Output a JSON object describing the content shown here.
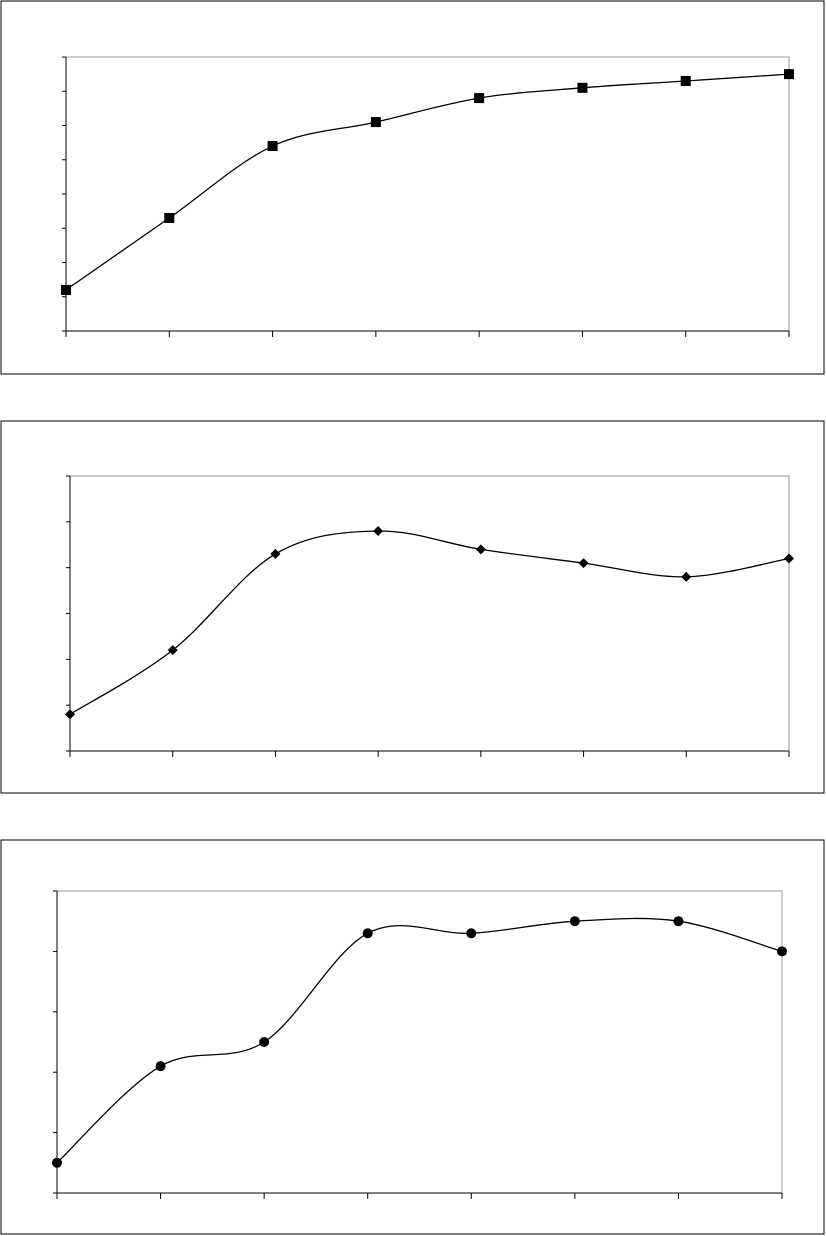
{
  "chart_data": [
    {
      "type": "line",
      "marker": "square",
      "smooth": true,
      "color": "#000000",
      "categories": [
        null,
        null,
        null,
        null,
        null,
        null,
        null,
        null
      ],
      "values": [
        1.2,
        3.3,
        5.4,
        6.1,
        6.8,
        7.1,
        7.3,
        7.5
      ],
      "ylim": [
        0,
        8
      ],
      "yticks": [
        0,
        1,
        2,
        3,
        4,
        5,
        6,
        7,
        8
      ]
    },
    {
      "type": "line",
      "marker": "diamond",
      "smooth": true,
      "color": "#000000",
      "categories": [
        null,
        null,
        null,
        null,
        null,
        null,
        null,
        null
      ],
      "values": [
        0.8,
        2.2,
        4.3,
        4.8,
        4.4,
        4.1,
        3.8,
        4.2
      ],
      "ylim": [
        0,
        6
      ],
      "yticks": [
        0,
        1,
        2,
        3,
        4,
        5,
        6
      ]
    },
    {
      "type": "line",
      "marker": "circle",
      "smooth": true,
      "color": "#000000",
      "categories": [
        null,
        null,
        null,
        null,
        null,
        null,
        null,
        null
      ],
      "values": [
        0.5,
        2.1,
        2.5,
        4.3,
        4.3,
        4.5,
        4.5,
        4.0
      ],
      "ylim": [
        0,
        5
      ],
      "yticks": [
        0,
        1,
        2,
        3,
        4,
        5
      ]
    }
  ]
}
